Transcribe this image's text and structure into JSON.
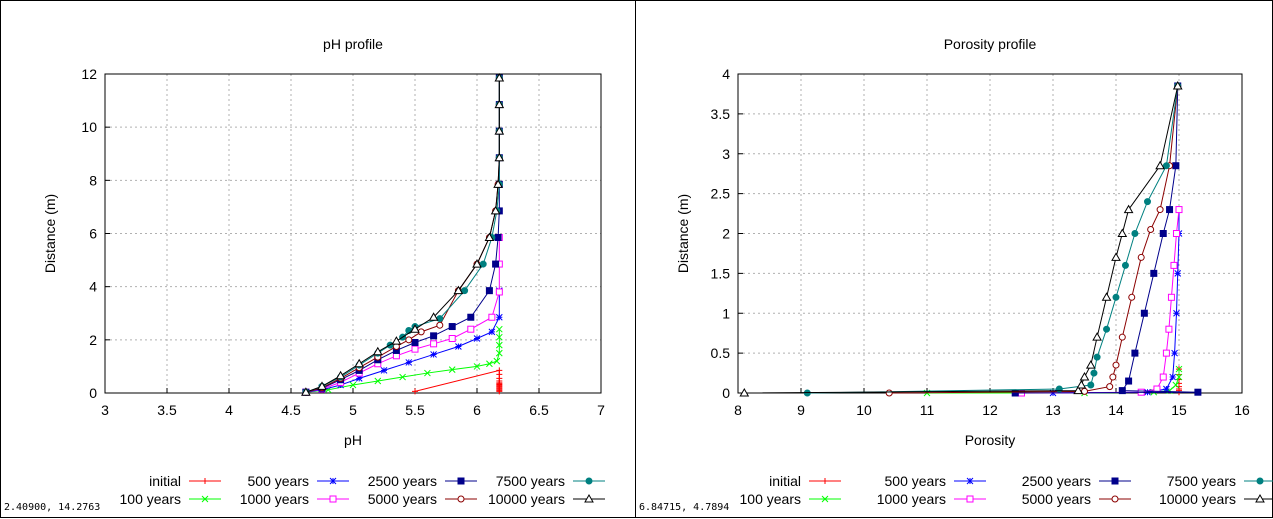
{
  "chart_data": [
    {
      "type": "line",
      "title": "pH profile",
      "xlabel": "pH",
      "ylabel": "Distance (m)",
      "xlim": [
        3,
        7
      ],
      "ylim": [
        0,
        12
      ],
      "xticks": [
        "3",
        "3.5",
        "4",
        "4.5",
        "5",
        "5.5",
        "6",
        "6.5",
        "7"
      ],
      "yticks": [
        "0",
        "2",
        "4",
        "6",
        "8",
        "10",
        "12"
      ],
      "grid": true,
      "legend_position": "bottom",
      "cursor_readout": "2.40900,  14.2763",
      "series": [
        {
          "name": "initial",
          "color": "#ff0000",
          "marker": "plus",
          "points": [
            [
              6.18,
              0.06
            ],
            [
              6.18,
              0.1
            ],
            [
              6.18,
              0.14
            ],
            [
              6.18,
              0.18
            ],
            [
              6.18,
              0.22
            ],
            [
              6.18,
              0.26
            ],
            [
              6.18,
              0.3
            ],
            [
              6.18,
              0.34
            ],
            [
              6.18,
              0.38
            ],
            [
              6.18,
              0.45
            ],
            [
              6.18,
              0.55
            ],
            [
              6.18,
              0.7
            ],
            [
              6.18,
              0.85
            ],
            [
              5.5,
              0.06
            ]
          ]
        },
        {
          "name": "100 years",
          "color": "#00ff00",
          "marker": "x",
          "points": [
            [
              4.62,
              0.03
            ],
            [
              4.8,
              0.12
            ],
            [
              5.0,
              0.3
            ],
            [
              5.2,
              0.45
            ],
            [
              5.4,
              0.6
            ],
            [
              5.6,
              0.75
            ],
            [
              5.8,
              0.88
            ],
            [
              6.0,
              1.0
            ],
            [
              6.1,
              1.1
            ],
            [
              6.16,
              1.2
            ],
            [
              6.18,
              1.5
            ],
            [
              6.18,
              1.8
            ],
            [
              6.18,
              2.1
            ],
            [
              6.18,
              2.4
            ]
          ]
        },
        {
          "name": "500 years",
          "color": "#0000ff",
          "marker": "star",
          "points": [
            [
              4.62,
              0.03
            ],
            [
              4.75,
              0.12
            ],
            [
              4.9,
              0.3
            ],
            [
              5.05,
              0.55
            ],
            [
              5.25,
              0.85
            ],
            [
              5.45,
              1.15
            ],
            [
              5.65,
              1.45
            ],
            [
              5.85,
              1.75
            ],
            [
              6.0,
              2.05
            ],
            [
              6.12,
              2.3
            ],
            [
              6.18,
              2.85
            ],
            [
              6.18,
              3.85
            ]
          ]
        },
        {
          "name": "1000 years",
          "color": "#ff00ff",
          "marker": "square-open",
          "points": [
            [
              4.62,
              0.03
            ],
            [
              4.75,
              0.15
            ],
            [
              4.9,
              0.4
            ],
            [
              5.05,
              0.75
            ],
            [
              5.2,
              1.1
            ],
            [
              5.35,
              1.4
            ],
            [
              5.5,
              1.65
            ],
            [
              5.65,
              1.85
            ],
            [
              5.8,
              2.05
            ],
            [
              5.95,
              2.4
            ],
            [
              6.12,
              2.85
            ],
            [
              6.18,
              3.8
            ],
            [
              6.18,
              4.85
            ],
            [
              6.18,
              5.85
            ]
          ]
        },
        {
          "name": "2500 years",
          "color": "#00008b",
          "marker": "square",
          "points": [
            [
              4.62,
              0.03
            ],
            [
              4.75,
              0.18
            ],
            [
              4.9,
              0.5
            ],
            [
              5.05,
              0.85
            ],
            [
              5.2,
              1.25
            ],
            [
              5.35,
              1.6
            ],
            [
              5.5,
              1.9
            ],
            [
              5.65,
              2.15
            ],
            [
              5.8,
              2.5
            ],
            [
              5.95,
              2.85
            ],
            [
              6.1,
              3.85
            ],
            [
              6.15,
              4.85
            ],
            [
              6.17,
              5.85
            ],
            [
              6.18,
              6.85
            ],
            [
              6.18,
              7.85
            ],
            [
              6.18,
              8.85
            ],
            [
              6.18,
              9.85
            ],
            [
              6.18,
              10.85
            ],
            [
              6.18,
              11.85
            ]
          ]
        },
        {
          "name": "5000 years",
          "color": "#8b0000",
          "marker": "circle-open",
          "points": [
            [
              4.62,
              0.03
            ],
            [
              4.75,
              0.2
            ],
            [
              4.9,
              0.55
            ],
            [
              5.05,
              0.95
            ],
            [
              5.2,
              1.35
            ],
            [
              5.35,
              1.75
            ],
            [
              5.45,
              2.0
            ],
            [
              5.55,
              2.3
            ],
            [
              5.7,
              2.55
            ],
            [
              5.85,
              3.85
            ],
            [
              6.0,
              4.85
            ],
            [
              6.1,
              5.85
            ],
            [
              6.15,
              6.85
            ],
            [
              6.17,
              7.85
            ],
            [
              6.18,
              8.85
            ],
            [
              6.18,
              9.85
            ],
            [
              6.18,
              10.85
            ],
            [
              6.18,
              11.85
            ]
          ]
        },
        {
          "name": "7500 years",
          "color": "#008080",
          "marker": "circle",
          "points": [
            [
              4.62,
              0.03
            ],
            [
              4.75,
              0.25
            ],
            [
              4.9,
              0.6
            ],
            [
              5.05,
              1.05
            ],
            [
              5.2,
              1.5
            ],
            [
              5.3,
              1.8
            ],
            [
              5.4,
              2.1
            ],
            [
              5.45,
              2.35
            ],
            [
              5.5,
              2.5
            ],
            [
              5.7,
              2.8
            ],
            [
              5.9,
              3.85
            ],
            [
              6.05,
              4.85
            ],
            [
              6.12,
              5.85
            ],
            [
              6.16,
              6.85
            ],
            [
              6.18,
              7.85
            ],
            [
              6.18,
              8.85
            ],
            [
              6.18,
              9.85
            ],
            [
              6.18,
              10.85
            ],
            [
              6.18,
              11.85
            ]
          ]
        },
        {
          "name": "10000 years",
          "color": "#000000",
          "marker": "triangle-open",
          "points": [
            [
              4.62,
              0.03
            ],
            [
              4.75,
              0.25
            ],
            [
              4.9,
              0.65
            ],
            [
              5.05,
              1.1
            ],
            [
              5.2,
              1.55
            ],
            [
              5.35,
              1.95
            ],
            [
              5.5,
              2.4
            ],
            [
              5.65,
              2.85
            ],
            [
              5.85,
              3.85
            ],
            [
              6.0,
              4.85
            ],
            [
              6.1,
              5.85
            ],
            [
              6.15,
              6.85
            ],
            [
              6.17,
              7.85
            ],
            [
              6.18,
              8.85
            ],
            [
              6.18,
              9.85
            ],
            [
              6.18,
              10.85
            ],
            [
              6.18,
              11.85
            ]
          ]
        }
      ]
    },
    {
      "type": "line",
      "title": "Porosity profile",
      "xlabel": "Porosity",
      "ylabel": "Distance (m)",
      "xlim": [
        8,
        16
      ],
      "ylim": [
        0,
        4
      ],
      "xticks": [
        "8",
        "9",
        "10",
        "11",
        "12",
        "13",
        "14",
        "15",
        "16"
      ],
      "yticks": [
        "0",
        "0.5",
        "1",
        "1.5",
        "2",
        "2.5",
        "3",
        "3.5",
        "4"
      ],
      "grid": true,
      "legend_position": "bottom",
      "cursor_readout": "6.84715,  4.7894",
      "series": [
        {
          "name": "initial",
          "color": "#ff0000",
          "marker": "plus",
          "points": [
            [
              15.0,
              0.01
            ],
            [
              15.0,
              0.03
            ],
            [
              15.0,
              0.05
            ],
            [
              15.0,
              0.08
            ],
            [
              15.0,
              0.12
            ],
            [
              15.0,
              0.17
            ],
            [
              15.0,
              0.23
            ],
            [
              15.0,
              0.3
            ]
          ]
        },
        {
          "name": "100 years",
          "color": "#00ff00",
          "marker": "x",
          "points": [
            [
              11.0,
              0.0
            ],
            [
              13.5,
              0.0
            ],
            [
              14.6,
              0.01
            ],
            [
              14.85,
              0.03
            ],
            [
              14.95,
              0.1
            ],
            [
              15.0,
              0.2
            ],
            [
              15.0,
              0.3
            ]
          ]
        },
        {
          "name": "500 years",
          "color": "#0000ff",
          "marker": "star",
          "points": [
            [
              13.0,
              0.0
            ],
            [
              14.5,
              0.01
            ],
            [
              14.8,
              0.05
            ],
            [
              14.9,
              0.2
            ],
            [
              14.93,
              0.5
            ],
            [
              14.96,
              1.0
            ],
            [
              14.98,
              1.5
            ],
            [
              15.0,
              2.0
            ],
            [
              15.0,
              2.3
            ]
          ]
        },
        {
          "name": "1000 years",
          "color": "#ff00ff",
          "marker": "square-open",
          "points": [
            [
              12.5,
              0.0
            ],
            [
              14.4,
              0.01
            ],
            [
              14.65,
              0.05
            ],
            [
              14.75,
              0.2
            ],
            [
              14.8,
              0.5
            ],
            [
              14.84,
              0.8
            ],
            [
              14.88,
              1.2
            ],
            [
              14.92,
              1.6
            ],
            [
              14.96,
              2.0
            ],
            [
              15.0,
              2.3
            ]
          ]
        },
        {
          "name": "2500 years",
          "color": "#00008b",
          "marker": "square",
          "points": [
            [
              12.4,
              0.0
            ],
            [
              15.3,
              0.01
            ],
            [
              14.1,
              0.03
            ],
            [
              14.2,
              0.15
            ],
            [
              14.3,
              0.5
            ],
            [
              14.45,
              1.0
            ],
            [
              14.6,
              1.5
            ],
            [
              14.75,
              2.0
            ],
            [
              14.85,
              2.3
            ],
            [
              14.95,
              2.85
            ],
            [
              14.98,
              3.85
            ]
          ]
        },
        {
          "name": "5000 years",
          "color": "#8b0000",
          "marker": "circle-open",
          "points": [
            [
              10.4,
              0.0
            ],
            [
              13.5,
              0.02
            ],
            [
              13.9,
              0.08
            ],
            [
              13.95,
              0.2
            ],
            [
              14.0,
              0.35
            ],
            [
              14.1,
              0.7
            ],
            [
              14.25,
              1.2
            ],
            [
              14.4,
              1.7
            ],
            [
              14.55,
              2.05
            ],
            [
              14.7,
              2.3
            ],
            [
              14.85,
              2.85
            ],
            [
              14.98,
              3.85
            ]
          ]
        },
        {
          "name": "7500 years",
          "color": "#008080",
          "marker": "circle",
          "points": [
            [
              9.1,
              0.0
            ],
            [
              13.1,
              0.05
            ],
            [
              13.6,
              0.1
            ],
            [
              13.65,
              0.25
            ],
            [
              13.7,
              0.45
            ],
            [
              13.85,
              0.8
            ],
            [
              14.0,
              1.2
            ],
            [
              14.15,
              1.6
            ],
            [
              14.3,
              2.0
            ],
            [
              14.5,
              2.4
            ],
            [
              14.8,
              2.85
            ],
            [
              14.98,
              3.85
            ]
          ]
        },
        {
          "name": "10000 years",
          "color": "#000000",
          "marker": "triangle-open",
          "points": [
            [
              8.1,
              0.0
            ],
            [
              13.4,
              0.03
            ],
            [
              13.45,
              0.1
            ],
            [
              13.5,
              0.2
            ],
            [
              13.6,
              0.35
            ],
            [
              13.7,
              0.7
            ],
            [
              13.85,
              1.2
            ],
            [
              14.0,
              1.7
            ],
            [
              14.1,
              2.0
            ],
            [
              14.2,
              2.3
            ],
            [
              14.7,
              2.85
            ],
            [
              14.98,
              3.85
            ]
          ]
        }
      ]
    }
  ]
}
